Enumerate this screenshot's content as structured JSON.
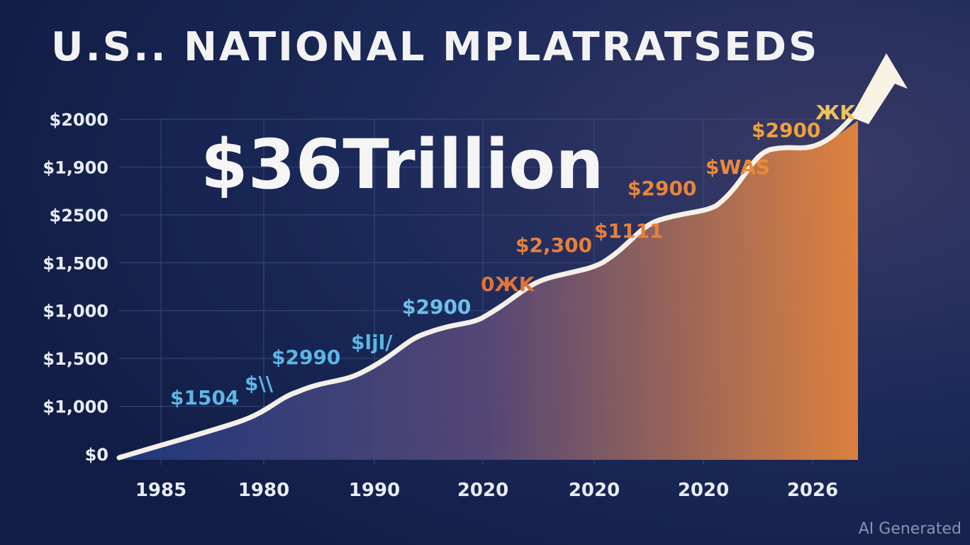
{
  "header": {
    "title": "U.S.. NATIONAL MPLATRATSEDS",
    "headline": "$36Trillion"
  },
  "y_labels": [
    "$2000",
    "$1,900",
    "$2500",
    "$1,500",
    "$1,000",
    "$1,500",
    "$1,000",
    "$0"
  ],
  "x_labels": [
    "1985",
    "1980",
    "1990",
    "2020",
    "2020",
    "2020",
    "2026"
  ],
  "callouts": [
    "$1504",
    "$\\\\",
    "$2990",
    "$ljl/",
    "$2900",
    "0ЖK",
    "$2,300",
    "$1111",
    "$2900",
    "$WAS",
    "$2900",
    "ЖK"
  ],
  "watermark": "AI Generated"
}
